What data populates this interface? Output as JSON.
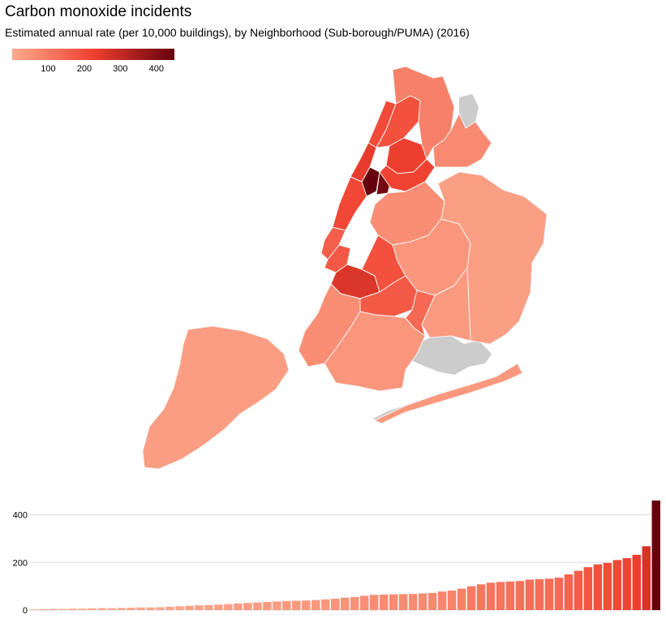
{
  "title": "Carbon monoxide incidents",
  "subtitle": "Estimated annual rate (per 10,000 buildings), by Neighborhood (Sub-borough/PUMA) (2016)",
  "colors": {
    "low": "#fcab8f",
    "mid": "#f0402f",
    "high": "#67000d",
    "nodata": "#cccccc",
    "border": "#f3f3f3",
    "grid": "#dddddd"
  },
  "legend": {
    "min": 0,
    "max": 450,
    "ticks": [
      {
        "value": 100,
        "label": "100"
      },
      {
        "value": 200,
        "label": "200"
      },
      {
        "value": 300,
        "label": "300"
      },
      {
        "value": 400,
        "label": "400"
      }
    ]
  },
  "map": {
    "regions": [
      {
        "name": "manhattan-north-strip",
        "value": 205
      },
      {
        "name": "manhattan-washington-heights",
        "value": 240
      },
      {
        "name": "manhattan-central-harlem",
        "value": 460
      },
      {
        "name": "manhattan-east-harlem",
        "value": 430
      },
      {
        "name": "manhattan-upper-west",
        "value": 210
      },
      {
        "name": "manhattan-midtown",
        "value": 160
      },
      {
        "name": "manhattan-lower",
        "value": 175
      },
      {
        "name": "bronx-west",
        "value": 190
      },
      {
        "name": "bronx-central",
        "value": 230
      },
      {
        "name": "bronx-south",
        "value": 220
      },
      {
        "name": "bronx-north",
        "value": 90
      },
      {
        "name": "bronx-east",
        "value": 70
      },
      {
        "name": "queens-northwest",
        "value": 60
      },
      {
        "name": "queens-central",
        "value": 45
      },
      {
        "name": "queens-east",
        "value": 25
      },
      {
        "name": "queens-south",
        "value": 35
      },
      {
        "name": "brooklyn-williamsburg",
        "value": 260
      },
      {
        "name": "brooklyn-bushwick",
        "value": 190
      },
      {
        "name": "brooklyn-crown-heights",
        "value": 170
      },
      {
        "name": "brooklyn-east-ny",
        "value": 140
      },
      {
        "name": "brooklyn-southwest",
        "value": 60
      },
      {
        "name": "brooklyn-south",
        "value": 45
      },
      {
        "name": "rockaway",
        "value": 40
      },
      {
        "name": "staten-island",
        "value": 30
      }
    ]
  },
  "chart_data": {
    "type": "bar",
    "title": "Carbon monoxide incidents",
    "ylabel": "Estimated annual rate (per 10,000 buildings)",
    "ylim": [
      0,
      470
    ],
    "y_ticks": [
      0,
      200,
      400
    ],
    "values": [
      3,
      4,
      5,
      5,
      6,
      6,
      7,
      8,
      8,
      9,
      10,
      11,
      11,
      12,
      14,
      16,
      18,
      20,
      21,
      23,
      25,
      28,
      30,
      32,
      34,
      36,
      38,
      39,
      40,
      42,
      45,
      48,
      52,
      55,
      60,
      64,
      65,
      66,
      67,
      68,
      70,
      72,
      78,
      82,
      90,
      100,
      108,
      115,
      118,
      120,
      122,
      128,
      130,
      132,
      136,
      150,
      165,
      180,
      192,
      198,
      210,
      218,
      232,
      268,
      460
    ]
  }
}
